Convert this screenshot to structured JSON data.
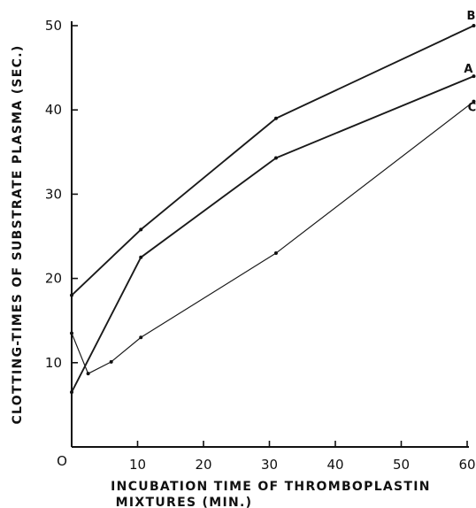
{
  "chart_data": {
    "type": "line",
    "xlabel_line1": "INCUBATION  TIME  OF  THROMBOPLASTIN",
    "xlabel_line2": "MIXTURES  (MIN.)",
    "ylabel": "CLOTTING-TIMES  OF  SUBSTRATE  PLASMA  (SEC.)",
    "x_ticks": [
      0,
      10,
      20,
      30,
      40,
      50,
      60
    ],
    "y_ticks": [
      10,
      20,
      30,
      40,
      50
    ],
    "origin_label": "O",
    "xlim": [
      0,
      60
    ],
    "ylim": [
      0,
      50
    ],
    "grid": false,
    "series": [
      {
        "name": "B",
        "x": [
          0,
          10.5,
          31,
          61
        ],
        "y": [
          18,
          25.8,
          39,
          50
        ]
      },
      {
        "name": "A",
        "x": [
          0,
          10.5,
          31,
          61
        ],
        "y": [
          6.5,
          22.5,
          34.3,
          44
        ]
      },
      {
        "name": "C",
        "x": [
          0,
          2.5,
          6,
          10.5,
          31,
          61
        ],
        "y": [
          13.5,
          8.7,
          10.1,
          13,
          23,
          41
        ]
      }
    ]
  }
}
